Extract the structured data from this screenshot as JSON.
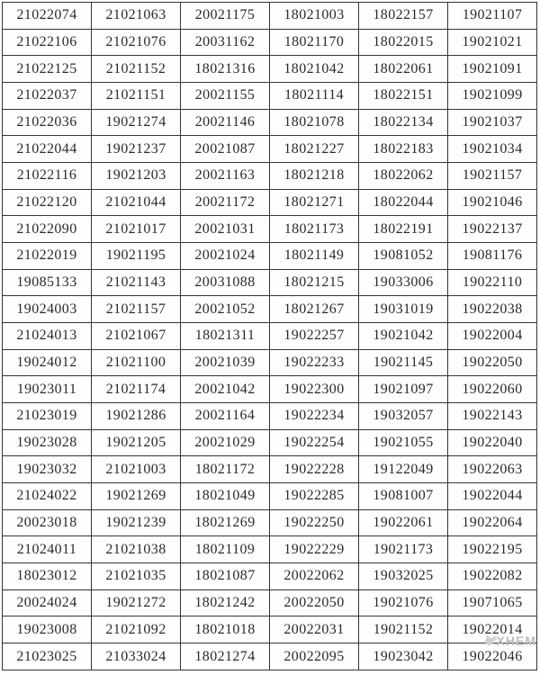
{
  "grid": {
    "rows": [
      [
        "21022074",
        "21021063",
        "20021175",
        "18021003",
        "18022157",
        "19021107"
      ],
      [
        "21022106",
        "21021076",
        "20031162",
        "18021170",
        "18022015",
        "19021021"
      ],
      [
        "21022125",
        "21021152",
        "18021316",
        "18021042",
        "18022061",
        "19021091"
      ],
      [
        "21022037",
        "21021151",
        "20021155",
        "18021114",
        "18022151",
        "19021099"
      ],
      [
        "21022036",
        "19021274",
        "20021146",
        "18021078",
        "18022134",
        "19021037"
      ],
      [
        "21022044",
        "19021237",
        "20021087",
        "18021227",
        "18022183",
        "19021034"
      ],
      [
        "21022116",
        "19021203",
        "20021163",
        "18021218",
        "18022062",
        "19021157"
      ],
      [
        "21022120",
        "21021044",
        "20021172",
        "18021271",
        "18022044",
        "19021046"
      ],
      [
        "21022090",
        "21021017",
        "20021031",
        "18021173",
        "18022191",
        "19022137"
      ],
      [
        "21022019",
        "19021195",
        "20021024",
        "18021149",
        "19081052",
        "19081176"
      ],
      [
        "19085133",
        "21021143",
        "20031088",
        "18021215",
        "19033006",
        "19022110"
      ],
      [
        "19024003",
        "21021157",
        "20021052",
        "18021267",
        "19031019",
        "19022038"
      ],
      [
        "21024013",
        "21021067",
        "18021311",
        "19022257",
        "19021042",
        "19022004"
      ],
      [
        "19024012",
        "21021100",
        "20021039",
        "19022233",
        "19021145",
        "19022050"
      ],
      [
        "19023011",
        "21021174",
        "20021042",
        "19022300",
        "19021097",
        "19022060"
      ],
      [
        "21023019",
        "19021286",
        "20021164",
        "19022234",
        "19032057",
        "19022143"
      ],
      [
        "19023028",
        "19021205",
        "20021029",
        "19022254",
        "19021055",
        "19022040"
      ],
      [
        "19023032",
        "21021003",
        "18021172",
        "19022228",
        "19122049",
        "19022063"
      ],
      [
        "21024022",
        "19021269",
        "18021049",
        "19022285",
        "19081007",
        "19022044"
      ],
      [
        "20023018",
        "19021239",
        "18021269",
        "19022250",
        "19022061",
        "19022064"
      ],
      [
        "21024011",
        "21021038",
        "18021109",
        "19022229",
        "19021173",
        "19022195"
      ],
      [
        "18023012",
        "21021035",
        "18021087",
        "20022062",
        "19032025",
        "19022082"
      ],
      [
        "20024024",
        "19021272",
        "18021242",
        "20022050",
        "19021076",
        "19071065"
      ],
      [
        "19023008",
        "21021092",
        "18021018",
        "20022031",
        "19021152",
        "19022014"
      ],
      [
        "21023025",
        "21033024",
        "18021274",
        "20022095",
        "19023042",
        "19022046"
      ]
    ]
  },
  "watermark": {
    "text": "XHEM"
  },
  "colors": {
    "background": "#fefefe",
    "border": "#353535",
    "text": "#2a2a2a",
    "watermark": "#bdbdbd"
  }
}
